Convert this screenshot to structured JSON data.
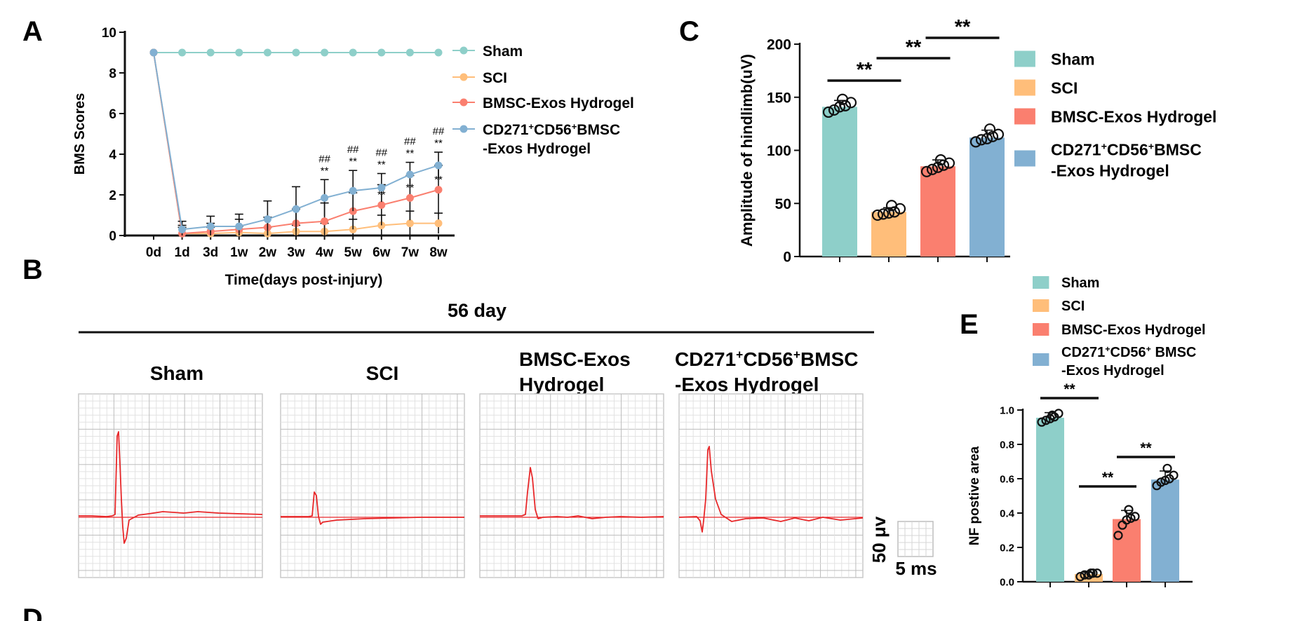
{
  "figure": {
    "panel_letters": [
      "A",
      "B",
      "C",
      "D",
      "E"
    ]
  },
  "chart_data": [
    {
      "id": "A",
      "type": "line",
      "ylabel": "BMS Scores",
      "xlabel": "Time(days post-injury)",
      "categories": [
        "0d",
        "1d",
        "3d",
        "1w",
        "2w",
        "3w",
        "4w",
        "5w",
        "6w",
        "7w",
        "8w"
      ],
      "ylim": [
        0,
        10
      ],
      "yticks": [
        0,
        2,
        4,
        6,
        8,
        10
      ],
      "series": [
        {
          "name": "Sham",
          "color": "#8ecfc9",
          "values": [
            9,
            9,
            9,
            9,
            9,
            9,
            9,
            9,
            9,
            9,
            9
          ],
          "err": [
            0,
            0,
            0,
            0,
            0,
            0,
            0,
            0,
            0,
            0,
            0
          ]
        },
        {
          "name": "SCI",
          "color": "#ffbe7a",
          "values": [
            9,
            0.1,
            0.1,
            0.15,
            0.1,
            0.2,
            0.2,
            0.3,
            0.5,
            0.6,
            0.6
          ],
          "err": [
            0,
            0.3,
            0.3,
            0.3,
            0.3,
            0.3,
            0.4,
            0.5,
            0.5,
            0.6,
            0.5
          ]
        },
        {
          "name": "BMSC-Exos Hydrogel",
          "color": "#fa7f6f",
          "values": [
            9,
            0.1,
            0.2,
            0.3,
            0.4,
            0.6,
            0.7,
            1.2,
            1.5,
            1.85,
            2.25
          ],
          "err": [
            0,
            0.4,
            0.4,
            0.5,
            0.5,
            0.7,
            0.9,
            0.9,
            1.0,
            1.1,
            1.2
          ]
        },
        {
          "name": "CD271⁺CD56⁺BMSC -Exos Hydrogel",
          "color": "#82b0d2",
          "values": [
            9,
            0.3,
            0.45,
            0.45,
            0.8,
            1.3,
            1.85,
            2.2,
            2.35,
            3.0,
            3.45
          ],
          "err": [
            0,
            0.4,
            0.5,
            0.6,
            0.9,
            1.1,
            0.9,
            1.0,
            0.7,
            0.6,
            0.65
          ]
        }
      ],
      "annotations": [
        {
          "category": "4w",
          "lines": [
            "##",
            "**"
          ]
        },
        {
          "category": "5w",
          "lines": [
            "##",
            "**"
          ]
        },
        {
          "category": "6w",
          "lines": [
            "##",
            "**"
          ]
        },
        {
          "category": "7w",
          "lines": [
            "##",
            "**"
          ]
        },
        {
          "category": "8w",
          "lines": [
            "##",
            "**"
          ]
        }
      ],
      "lower_annotations": [
        {
          "category": "6w",
          "text": "**"
        },
        {
          "category": "7w",
          "text": "**"
        },
        {
          "category": "8w",
          "text": "**"
        }
      ],
      "legend": [
        "Sham",
        "SCI",
        "BMSC-Exos Hydrogel",
        "CD271⁺CD56⁺BMSC",
        "-Exos Hydrogel"
      ]
    },
    {
      "id": "C",
      "type": "bar",
      "ylabel": "Amplitude of hindlimb(uV)",
      "categories": [
        "Sham",
        "SCI",
        "BMSC-Exos Hydrogel",
        "CD271⁺CD56⁺BMSC -Exos Hydrogel"
      ],
      "values": [
        141,
        42,
        85,
        112
      ],
      "err": [
        6,
        4,
        6,
        7
      ],
      "colors": [
        "#8ecfc9",
        "#ffbe7a",
        "#fa7f6f",
        "#82b0d2"
      ],
      "points": [
        [
          136,
          138,
          141,
          142,
          145,
          148
        ],
        [
          39,
          40,
          41,
          42,
          45,
          48
        ],
        [
          80,
          82,
          84,
          86,
          88,
          91
        ],
        [
          108,
          110,
          111,
          113,
          115,
          120
        ]
      ],
      "ylim": [
        0,
        200
      ],
      "yticks": [
        0,
        50,
        100,
        150,
        200
      ],
      "significance": [
        {
          "from": 0,
          "to": 1,
          "label": "**"
        },
        {
          "from": 1,
          "to": 2,
          "label": "**"
        },
        {
          "from": 2,
          "to": 3,
          "label": "**"
        }
      ],
      "legend": [
        "Sham",
        "SCI",
        "BMSC-Exos Hydrogel",
        "CD271⁺CD56⁺BMSC",
        "-Exos Hydrogel"
      ]
    },
    {
      "id": "E",
      "type": "bar",
      "ylabel": "NF postive area",
      "categories": [
        "Sham",
        "SCI",
        "BMSC-Exos Hydrogel",
        "CD271⁺CD56⁺ BMSC -Exos Hydrogel"
      ],
      "values": [
        0.955,
        0.045,
        0.365,
        0.595
      ],
      "err": [
        0.03,
        0.01,
        0.05,
        0.05
      ],
      "colors": [
        "#8ecfc9",
        "#ffbe7a",
        "#fa7f6f",
        "#82b0d2"
      ],
      "points": [
        [
          0.93,
          0.94,
          0.95,
          0.96,
          0.98,
          0.97
        ],
        [
          0.03,
          0.04,
          0.04,
          0.05,
          0.05,
          0.05
        ],
        [
          0.27,
          0.33,
          0.36,
          0.37,
          0.38,
          0.42
        ],
        [
          0.56,
          0.58,
          0.59,
          0.6,
          0.62,
          0.66
        ]
      ],
      "ylim": [
        0,
        1.0
      ],
      "yticks": [
        0.0,
        0.2,
        0.4,
        0.6,
        0.8,
        1.0
      ],
      "significance": [
        {
          "from": 0,
          "to": 1,
          "label": "**"
        },
        {
          "from": 1,
          "to": 2,
          "label": "**"
        },
        {
          "from": 2,
          "to": 3,
          "label": "**"
        }
      ],
      "legend": [
        "Sham",
        "SCI",
        "BMSC-Exos Hydrogel",
        "CD271⁺CD56⁺ BMSC",
        "-Exos Hydrogel"
      ]
    }
  ],
  "panel_B": {
    "title": "56 day",
    "groups": [
      {
        "label_lines": [
          "Sham"
        ]
      },
      {
        "label_lines": [
          "SCI"
        ]
      },
      {
        "label_lines": [
          "BMSC-Exos",
          "Hydrogel"
        ]
      },
      {
        "label_lines": [
          "CD271⁺CD56⁺BMSC",
          "-Exos Hydrogel"
        ]
      }
    ],
    "scale_bar": {
      "voltage": "50 μv",
      "time": "5 ms"
    },
    "trace_color": "#e8282a"
  }
}
